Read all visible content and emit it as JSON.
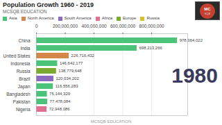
{
  "chart_data": {
    "type": "bar",
    "orientation": "horizontal",
    "title": "Population Growth 1960 - 2019",
    "subtitle": "MCSQB EDUCATION",
    "annotations": [
      "1980",
      "MCSQB EDUCATION",
      "MC",
      "SQB"
    ],
    "categories": [
      "China",
      "India",
      "United States",
      "Indonesia",
      "Russia",
      "Brazil",
      "Japan",
      "Bangladesh",
      "Pakistan",
      "Nigeria"
    ],
    "series": [
      {
        "name": "Asia",
        "color": "#4bc47a",
        "values": [
          978364022,
          698213266,
          null,
          146642177,
          null,
          null,
          116556283,
          75144329,
          77478084,
          null
        ],
        "value_labels": [
          "978,364,022",
          "698,213,266",
          null,
          "146,642,177",
          null,
          null,
          "116,556,283",
          "75,144,329",
          "77,478,084",
          null
        ]
      },
      {
        "name": "North America",
        "color": "#d4874a",
        "values": [
          null,
          null,
          226716432,
          null,
          null,
          null,
          null,
          null,
          null,
          null
        ],
        "value_labels": [
          null,
          null,
          "226,716,432",
          null,
          null,
          null,
          null,
          null,
          null,
          null
        ]
      },
      {
        "name": "South America",
        "color": "#8b6abf",
        "values": [
          null,
          null,
          null,
          null,
          null,
          120034202,
          null,
          null,
          null,
          null
        ],
        "value_labels": [
          null,
          null,
          null,
          null,
          null,
          "120,034,202",
          null,
          null,
          null,
          null
        ]
      },
      {
        "name": "Africa",
        "color": "#e07090",
        "values": [
          null,
          null,
          null,
          null,
          null,
          null,
          null,
          null,
          null,
          72948086
        ],
        "value_labels": [
          null,
          null,
          null,
          null,
          null,
          null,
          null,
          null,
          null,
          "72,948,086"
        ]
      },
      {
        "name": "Europe",
        "color": "#7aaa30",
        "values": [
          null,
          null,
          null,
          null,
          138779648,
          null,
          null,
          null,
          null,
          null
        ],
        "value_labels": [
          null,
          null,
          null,
          null,
          "138,779,648",
          null,
          null,
          null,
          null,
          null
        ]
      },
      {
        "name": "Russia",
        "color": "#d4c030",
        "values": [
          null,
          null,
          null,
          null,
          null,
          null,
          null,
          null,
          null,
          null
        ],
        "value_labels": [
          null,
          null,
          null,
          null,
          null,
          null,
          null,
          null,
          null,
          null
        ]
      }
    ],
    "xlim": [
      0,
      1050000000
    ],
    "xticks": [
      {
        "value": 0,
        "label": "0"
      },
      {
        "value": 200000000,
        "label": "200,000,000"
      },
      {
        "value": 400000000,
        "label": "400,000,000"
      },
      {
        "value": 600000000,
        "label": "600,000,000"
      },
      {
        "value": 800000000,
        "label": "800,000,000"
      }
    ],
    "grid": true,
    "data_labels": true,
    "legend": "top-left"
  }
}
